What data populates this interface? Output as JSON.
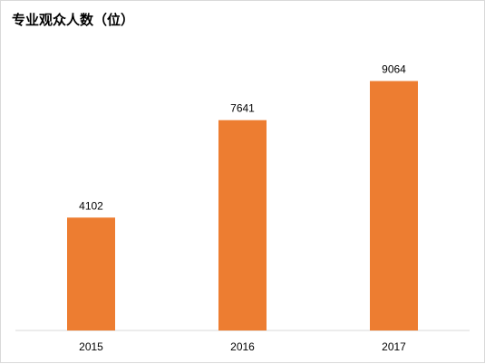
{
  "chart_data": {
    "type": "bar",
    "title": "专业观众人数（位）",
    "categories": [
      "2015",
      "2016",
      "2017"
    ],
    "values": [
      4102,
      7641,
      9064
    ],
    "xlabel": "",
    "ylabel": "",
    "ylim": [
      0,
      10000
    ],
    "grid": false,
    "legend": "none",
    "bar_color": "#ED7D31",
    "data_labels": true
  }
}
